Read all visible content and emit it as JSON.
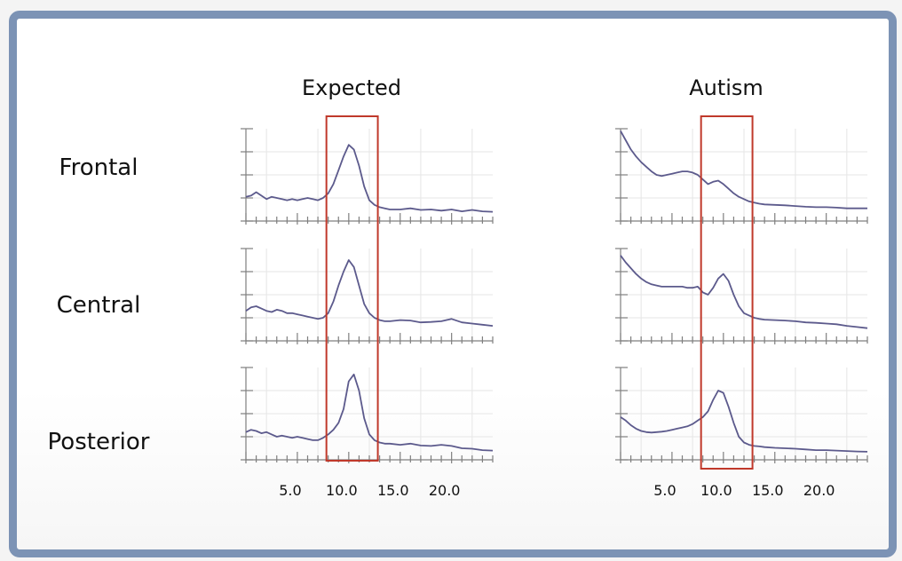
{
  "colors": {
    "frame": "#7c93b5",
    "curve": "#5c5a8c",
    "highlight": "#c0392b",
    "axis": "#7f7f7f",
    "grid": "#e6e6e6"
  },
  "columns": [
    {
      "id": "expected",
      "title": "Expected"
    },
    {
      "id": "autism",
      "title": "Autism"
    }
  ],
  "rows": [
    {
      "id": "frontal",
      "label": "Frontal"
    },
    {
      "id": "central",
      "label": "Central"
    },
    {
      "id": "posterior",
      "label": "Posterior"
    }
  ],
  "x_tick_labels": [
    "5.0",
    "10.0",
    "15.0",
    "20.0"
  ],
  "highlight_band": [
    8,
    13
  ],
  "chart_data": [
    {
      "type": "line",
      "panel": "Expected - Frontal",
      "xlim": [
        0,
        24
      ],
      "ylim": [
        0,
        4
      ],
      "x": [
        0,
        0.5,
        1,
        1.5,
        2,
        2.5,
        3,
        3.5,
        4,
        4.5,
        5,
        5.5,
        6,
        6.5,
        7,
        7.5,
        8,
        8.5,
        9,
        9.5,
        10,
        10.5,
        11,
        11.5,
        12,
        12.5,
        13,
        13.5,
        14,
        15,
        16,
        17,
        18,
        19,
        20,
        21,
        22,
        23,
        24
      ],
      "y": [
        1.05,
        1.1,
        1.25,
        1.1,
        0.95,
        1.05,
        1.0,
        0.95,
        0.9,
        0.95,
        0.9,
        0.95,
        1.0,
        0.95,
        0.9,
        1.0,
        1.2,
        1.6,
        2.2,
        2.8,
        3.3,
        3.1,
        2.4,
        1.5,
        0.9,
        0.7,
        0.6,
        0.55,
        0.5,
        0.5,
        0.55,
        0.48,
        0.5,
        0.45,
        0.5,
        0.42,
        0.48,
        0.42,
        0.4
      ]
    },
    {
      "type": "line",
      "panel": "Expected - Central",
      "xlim": [
        0,
        24
      ],
      "ylim": [
        0,
        4
      ],
      "x": [
        0,
        0.5,
        1,
        1.5,
        2,
        2.5,
        3,
        3.5,
        4,
        4.5,
        5,
        5.5,
        6,
        6.5,
        7,
        7.5,
        8,
        8.5,
        9,
        9.5,
        10,
        10.5,
        11,
        11.5,
        12,
        12.5,
        13,
        13.5,
        14,
        15,
        16,
        17,
        18,
        19,
        20,
        21,
        22,
        23,
        24
      ],
      "y": [
        1.3,
        1.45,
        1.5,
        1.4,
        1.3,
        1.25,
        1.35,
        1.3,
        1.2,
        1.2,
        1.15,
        1.1,
        1.05,
        1.0,
        0.95,
        1.0,
        1.2,
        1.7,
        2.4,
        3.0,
        3.5,
        3.2,
        2.4,
        1.6,
        1.2,
        1.0,
        0.9,
        0.85,
        0.85,
        0.9,
        0.88,
        0.8,
        0.82,
        0.85,
        0.95,
        0.8,
        0.75,
        0.7,
        0.65
      ]
    },
    {
      "type": "line",
      "panel": "Expected - Posterior",
      "xlim": [
        0,
        24
      ],
      "ylim": [
        0,
        4
      ],
      "x": [
        0,
        0.5,
        1,
        1.5,
        2,
        2.5,
        3,
        3.5,
        4,
        4.5,
        5,
        5.5,
        6,
        6.5,
        7,
        7.5,
        8,
        8.5,
        9,
        9.5,
        10,
        10.5,
        11,
        11.5,
        12,
        12.5,
        13,
        13.5,
        14,
        15,
        16,
        17,
        18,
        19,
        20,
        21,
        22,
        23,
        24
      ],
      "y": [
        1.2,
        1.3,
        1.25,
        1.15,
        1.2,
        1.1,
        1.0,
        1.05,
        1.0,
        0.95,
        1.0,
        0.95,
        0.9,
        0.85,
        0.85,
        0.95,
        1.1,
        1.3,
        1.6,
        2.2,
        3.4,
        3.7,
        3.0,
        1.8,
        1.1,
        0.85,
        0.75,
        0.7,
        0.7,
        0.65,
        0.7,
        0.62,
        0.6,
        0.65,
        0.6,
        0.5,
        0.48,
        0.42,
        0.4
      ]
    },
    {
      "type": "line",
      "panel": "Autism - Frontal",
      "xlim": [
        0,
        24
      ],
      "ylim": [
        0,
        4
      ],
      "x": [
        0,
        0.5,
        1,
        1.5,
        2,
        2.5,
        3,
        3.5,
        4,
        4.5,
        5,
        5.5,
        6,
        6.5,
        7,
        7.5,
        8,
        8.5,
        9,
        9.5,
        10,
        10.5,
        11,
        11.5,
        12,
        12.5,
        13,
        13.5,
        14,
        15,
        16,
        17,
        18,
        19,
        20,
        21,
        22,
        23,
        24
      ],
      "y": [
        3.9,
        3.5,
        3.1,
        2.8,
        2.55,
        2.35,
        2.15,
        2.0,
        1.95,
        2.0,
        2.05,
        2.1,
        2.15,
        2.15,
        2.1,
        2.0,
        1.8,
        1.6,
        1.7,
        1.75,
        1.6,
        1.4,
        1.2,
        1.05,
        0.95,
        0.85,
        0.8,
        0.75,
        0.72,
        0.7,
        0.68,
        0.65,
        0.62,
        0.6,
        0.6,
        0.58,
        0.55,
        0.55,
        0.55
      ]
    },
    {
      "type": "line",
      "panel": "Autism - Central",
      "xlim": [
        0,
        24
      ],
      "ylim": [
        0,
        4
      ],
      "x": [
        0,
        0.5,
        1,
        1.5,
        2,
        2.5,
        3,
        3.5,
        4,
        4.5,
        5,
        5.5,
        6,
        6.5,
        7,
        7.5,
        8,
        8.5,
        9,
        9.5,
        10,
        10.5,
        11,
        11.5,
        12,
        12.5,
        13,
        13.5,
        14,
        15,
        16,
        17,
        18,
        19,
        20,
        21,
        22,
        23,
        24
      ],
      "y": [
        3.7,
        3.4,
        3.15,
        2.9,
        2.7,
        2.55,
        2.45,
        2.4,
        2.35,
        2.35,
        2.35,
        2.35,
        2.35,
        2.3,
        2.3,
        2.35,
        2.1,
        2.0,
        2.3,
        2.7,
        2.9,
        2.6,
        2.0,
        1.5,
        1.2,
        1.1,
        1.0,
        0.95,
        0.92,
        0.9,
        0.88,
        0.85,
        0.8,
        0.78,
        0.75,
        0.72,
        0.65,
        0.6,
        0.55
      ]
    },
    {
      "type": "line",
      "panel": "Autism - Posterior",
      "xlim": [
        0,
        24
      ],
      "ylim": [
        0,
        4
      ],
      "x": [
        0,
        0.5,
        1,
        1.5,
        2,
        2.5,
        3,
        3.5,
        4,
        4.5,
        5,
        5.5,
        6,
        6.5,
        7,
        7.5,
        8,
        8.5,
        9,
        9.5,
        10,
        10.5,
        11,
        11.5,
        12,
        12.5,
        13,
        13.5,
        14,
        15,
        16,
        17,
        18,
        19,
        20,
        21,
        22,
        23,
        24
      ],
      "y": [
        1.85,
        1.7,
        1.5,
        1.35,
        1.25,
        1.2,
        1.18,
        1.2,
        1.22,
        1.25,
        1.3,
        1.35,
        1.4,
        1.45,
        1.55,
        1.7,
        1.85,
        2.1,
        2.6,
        3.0,
        2.9,
        2.3,
        1.6,
        1.0,
        0.75,
        0.65,
        0.6,
        0.58,
        0.55,
        0.52,
        0.5,
        0.48,
        0.45,
        0.42,
        0.42,
        0.4,
        0.38,
        0.36,
        0.35
      ]
    }
  ]
}
